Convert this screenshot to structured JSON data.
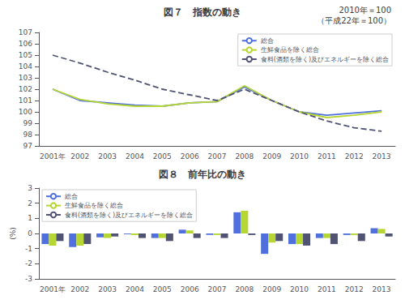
{
  "chart_data": [
    {
      "type": "line",
      "title": "図７　指数の動き",
      "annotations": [
        "2010年＝100",
        "（平成22年＝100）"
      ],
      "categories": [
        "2001年",
        "2002",
        "2003",
        "2004",
        "2005",
        "2006",
        "2007",
        "2008",
        "2009",
        "2010",
        "2011",
        "2012",
        "2013"
      ],
      "series": [
        {
          "name": "総合",
          "line_style": "solid",
          "values": [
            102.0,
            101.0,
            100.8,
            100.6,
            100.5,
            100.8,
            100.9,
            102.2,
            101.0,
            100.0,
            99.7,
            99.9,
            100.1
          ]
        },
        {
          "name": "生鮮食品を除く総合",
          "line_style": "solid",
          "values": [
            102.0,
            101.1,
            100.7,
            100.5,
            100.5,
            100.8,
            100.9,
            102.3,
            101.0,
            100.0,
            99.5,
            99.7,
            100.0
          ]
        },
        {
          "name": "食料(酒類を除く)及びエネルギーを除く総合",
          "line_style": "dashed",
          "values": [
            105.0,
            104.3,
            103.5,
            102.8,
            102.0,
            101.5,
            101.0,
            102.0,
            101.0,
            100.0,
            99.2,
            98.6,
            98.3
          ]
        }
      ],
      "ylim": [
        97,
        107
      ],
      "yticks": [
        97,
        98,
        99,
        100,
        101,
        102,
        103,
        104,
        105,
        106,
        107
      ],
      "grid": false,
      "legend": "upper right"
    },
    {
      "type": "bar",
      "title": "図８　前年比の動き",
      "ylabel": "(%)",
      "categories": [
        "2001年",
        "2002",
        "2003",
        "2004",
        "2005",
        "2006",
        "2007",
        "2008",
        "2009",
        "2010",
        "2011",
        "2012",
        "2013"
      ],
      "series": [
        {
          "name": "総合",
          "values": [
            -0.7,
            -0.9,
            -0.25,
            -0.05,
            -0.3,
            0.25,
            -0.1,
            1.4,
            -1.35,
            -0.7,
            -0.3,
            -0.1,
            0.35
          ]
        },
        {
          "name": "生鮮食品を除く総合",
          "values": [
            -0.8,
            -0.8,
            -0.3,
            -0.1,
            -0.3,
            0.2,
            -0.1,
            1.5,
            -0.6,
            -0.7,
            -0.3,
            -0.1,
            0.3
          ]
        },
        {
          "name": "食料(酒類を除く)及びエネルギーを除く総合",
          "values": [
            -0.5,
            -0.7,
            -0.2,
            -0.3,
            -0.5,
            -0.3,
            -0.3,
            -0.1,
            -0.5,
            -0.8,
            -0.7,
            -0.5,
            -0.2
          ]
        }
      ],
      "ylim": [
        -3.0,
        3.0
      ],
      "yticks": [
        -3.0,
        -2.0,
        -1.0,
        0.0,
        1.0,
        2.0,
        3.0
      ],
      "grid": false,
      "legend": "upper left"
    }
  ]
}
